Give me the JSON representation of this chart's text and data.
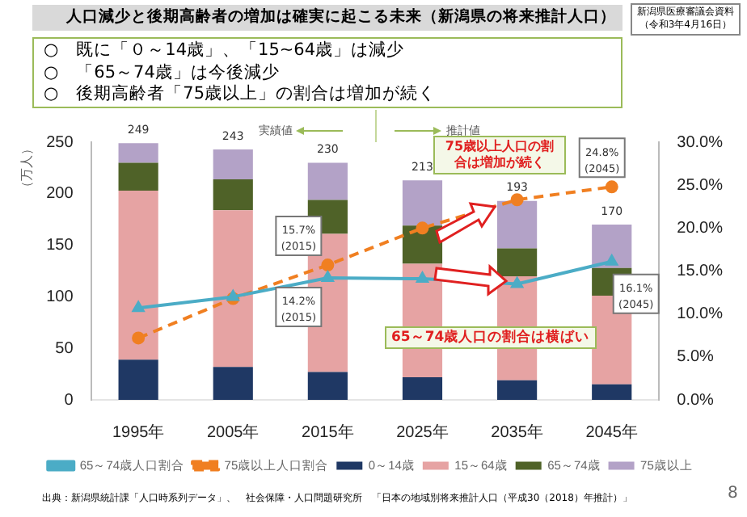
{
  "chart_data": {
    "type": "bar",
    "title": "人口減少と後期高齢者の増加は確実に起こる未来（新潟県の将来推計人口）",
    "subtitle": "○　既に「０～14歳」、「15~64歳」は減少\n○　「65～74歳」は今後減少\n○　後期高齢者「75歳以上」の割合は増加が続く",
    "ylabel": "（万人）",
    "categories": [
      "1995年",
      "2005年",
      "2015年",
      "2025年",
      "2035年",
      "2045年"
    ],
    "stacked": true,
    "series": [
      {
        "name": "0～14歳",
        "color": "#1f3864",
        "values": [
          39,
          32,
          27,
          22,
          19,
          15
        ]
      },
      {
        "name": "15～64歳",
        "color": "#e6a3a3",
        "values": [
          164,
          152,
          134,
          110,
          101,
          86
        ]
      },
      {
        "name": "65～74歳",
        "color": "#4f6228",
        "values": [
          27,
          30,
          33,
          37,
          27,
          27
        ]
      },
      {
        "name": "75歳以上",
        "color": "#b3a2c7",
        "values": [
          19,
          29,
          36,
          44,
          46,
          42
        ]
      },
      {
        "name": "65～74歳人口割合",
        "type": "line",
        "axis": "y2",
        "color": "#4bacc6",
        "marker": "triangle",
        "line_style": "solid",
        "values": [
          10.7,
          12.0,
          14.2,
          14.1,
          13.5,
          16.1
        ],
        "value_labels": [
          null,
          null,
          "14.2%\n(2015)",
          null,
          null,
          "16.1%\n(2045)"
        ]
      },
      {
        "name": "75歳以上人口割合",
        "type": "line",
        "axis": "y2",
        "color": "#f07f21",
        "marker": "circle",
        "line_style": "dashed",
        "values": [
          7.2,
          11.8,
          15.7,
          20.0,
          23.3,
          24.8
        ],
        "value_labels": [
          null,
          null,
          "15.7%\n(2015)",
          null,
          null,
          "24.8%\n(2045)"
        ]
      }
    ],
    "totals": [
      "249",
      "243",
      "230",
      "213",
      "193",
      "170"
    ],
    "ylim": [
      0,
      250
    ],
    "yticks": [
      0,
      50,
      100,
      150,
      200,
      250
    ],
    "y2lim": [
      0,
      30
    ],
    "y2ticks": [
      {
        "value": 0,
        "label": "0.0%"
      },
      {
        "value": 5,
        "label": "5.0%"
      },
      {
        "value": 10,
        "label": "10.0%"
      },
      {
        "value": 15,
        "label": "15.0%"
      },
      {
        "value": 20,
        "label": "20.0%"
      },
      {
        "value": 25,
        "label": "25.0%"
      },
      {
        "value": 30,
        "label": "30.0%"
      }
    ],
    "legend": "bottom",
    "annotations": [
      "新潟県医療審議会資料（令和3年4月16日）",
      "実績値",
      "推計値",
      "75歳以上人口の割合は増加が続く",
      "65～74歳人口の割合は横ばい",
      "出典：新潟県統計課「人口時系列データ」、　社会保障・人口問題研究所　「日本の地域別将来推計人口（平成30（2018）年推計）」",
      "8"
    ]
  }
}
